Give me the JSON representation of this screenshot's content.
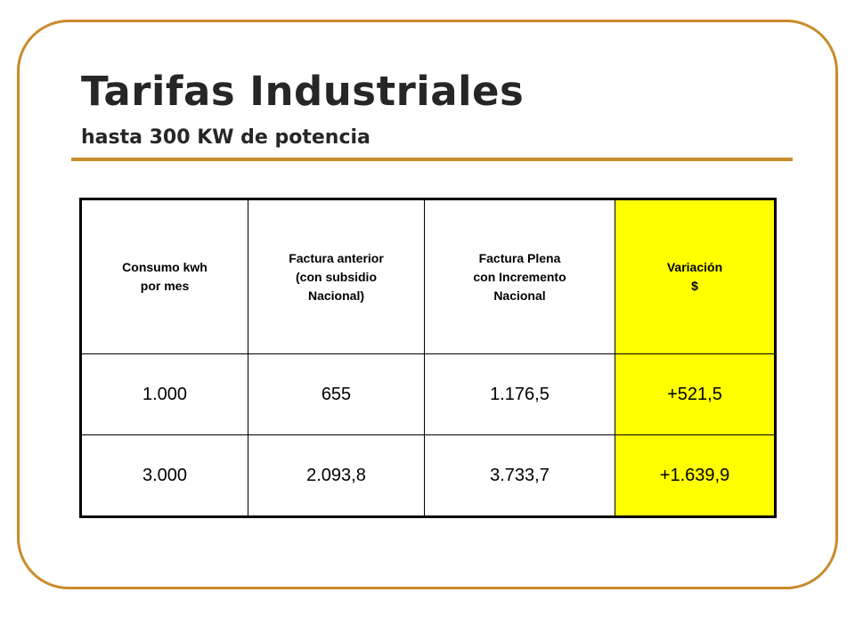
{
  "title": "Tarifas Industriales",
  "subtitle": "hasta 300 KW de potencia",
  "colors": {
    "accent": "#c98b2c",
    "highlight": "#ffff00",
    "text": "#262626"
  },
  "table": {
    "headers": [
      [
        "Consumo kwh",
        "por mes"
      ],
      [
        "Factura anterior",
        "(con subsidio",
        "Nacional)"
      ],
      [
        "Factura Plena",
        "con Incremento",
        "Nacional"
      ],
      [
        "Variación",
        "$"
      ]
    ],
    "rows": [
      [
        "1.000",
        "655",
        "1.176,5",
        "+521,5"
      ],
      [
        "3.000",
        "2.093,8",
        "3.733,7",
        "+1.639,9"
      ]
    ]
  }
}
